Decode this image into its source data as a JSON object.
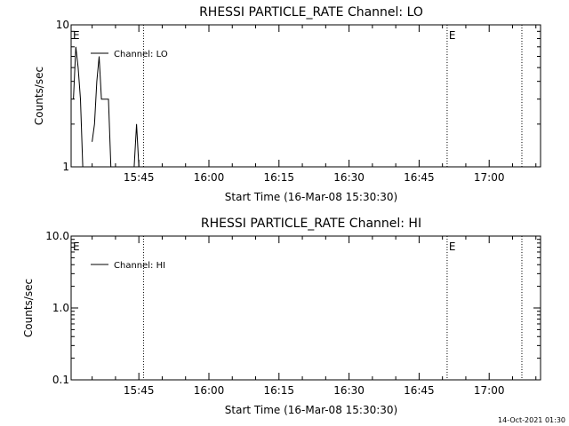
{
  "footer_timestamp": "14-Oct-2021 01:30",
  "chart_data": [
    {
      "type": "line",
      "title": "RHESSI PARTICLE_RATE Channel: LO",
      "xlabel": "Start Time (16-Mar-08 15:30:30)",
      "ylabel": "Counts/sec",
      "yscale": "log",
      "ylim": [
        1,
        10
      ],
      "xlim": [
        "15:30:30",
        "17:11:00"
      ],
      "xticks": [
        "15:45",
        "16:00",
        "16:15",
        "16:30",
        "16:45",
        "17:00"
      ],
      "yticks": [
        "1",
        "10"
      ],
      "legend_position": "top-left",
      "grid": false,
      "series": [
        {
          "name": "Channel: LO",
          "x": [
            "15:31:00",
            "15:31:30",
            "15:32:00",
            "15:32:30",
            "15:33:00",
            "15:33:30",
            "15:34:00",
            "15:34:30",
            "15:35:00",
            "15:35:30",
            "15:36:00",
            "15:36:30",
            "15:37:00",
            "15:37:30",
            "15:38:00",
            "15:38:30",
            "15:39:00",
            "15:39:30",
            "15:40:00",
            "15:40:30",
            "15:41:00",
            "15:41:30",
            "15:42:00",
            "15:42:30",
            "15:43:00",
            "15:43:30",
            "15:44:00",
            "15:44:30",
            "15:45:00",
            "15:45:30"
          ],
          "y": [
            3,
            7,
            5,
            3,
            1,
            null,
            null,
            null,
            1.5,
            2,
            4,
            6,
            3,
            3,
            3,
            3,
            1,
            null,
            null,
            null,
            null,
            null,
            null,
            null,
            null,
            null,
            1,
            2,
            1,
            null
          ]
        }
      ],
      "annotations": [
        {
          "label": "E",
          "x": "15:30:30"
        },
        {
          "label": "E",
          "x": "16:51:00"
        }
      ],
      "vlines": [
        "15:46:00",
        "16:51:00",
        "17:07:00"
      ]
    },
    {
      "type": "line",
      "title": "RHESSI PARTICLE_RATE Channel: HI",
      "xlabel": "Start Time (16-Mar-08 15:30:30)",
      "ylabel": "Counts/sec",
      "yscale": "log",
      "ylim": [
        0.1,
        10
      ],
      "xlim": [
        "15:30:30",
        "17:11:00"
      ],
      "xticks": [
        "15:45",
        "16:00",
        "16:15",
        "16:30",
        "16:45",
        "17:00"
      ],
      "yticks": [
        "0.1",
        "1.0",
        "10.0"
      ],
      "legend_position": "top-left",
      "grid": false,
      "series": [
        {
          "name": "Channel: HI",
          "x": [],
          "y": []
        }
      ],
      "annotations": [
        {
          "label": "E",
          "x": "15:30:30"
        },
        {
          "label": "E",
          "x": "16:51:00"
        }
      ],
      "vlines": [
        "15:46:00",
        "16:51:00",
        "17:07:00"
      ]
    }
  ]
}
